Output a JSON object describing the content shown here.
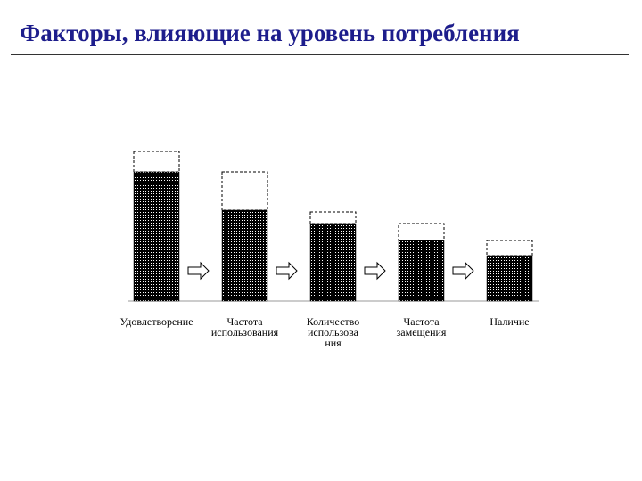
{
  "chart_data": {
    "type": "bar",
    "title": "Факторы, влияющие на уровень потребления",
    "categories": [
      "Удовлетворение",
      "Частота\nиспользования",
      "Количество\nиспользова\nния",
      "Частота\nзамещения",
      "Наличие"
    ],
    "series": [
      {
        "color": "#000000",
        "pattern": "dots",
        "values": [
          145,
          102,
          87,
          68,
          51
        ]
      },
      {
        "color": "#000000",
        "pattern": "dashed",
        "values": [
          23,
          43,
          13,
          19,
          17
        ]
      }
    ],
    "stacked": true,
    "ylim": [
      0,
      200
    ]
  }
}
